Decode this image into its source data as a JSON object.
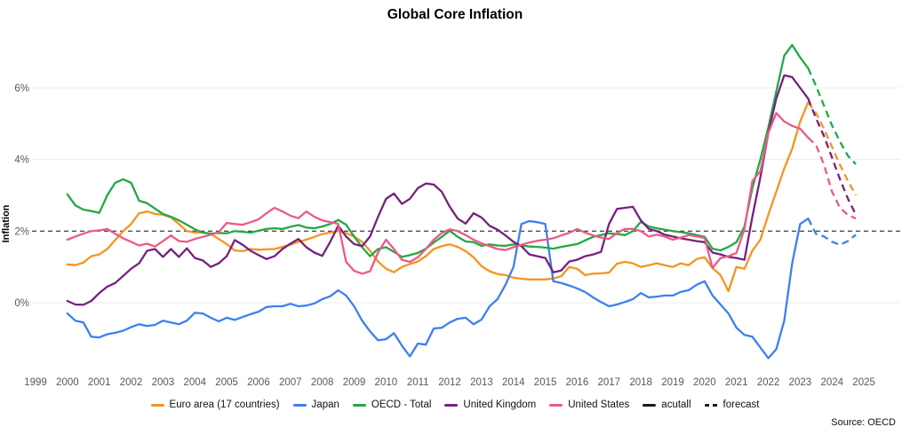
{
  "chart_data": {
    "type": "line",
    "title": "Global Core Inflation",
    "ylabel": "Inflation",
    "source": "Source: OECD",
    "grid": "horizontal-only",
    "legend_position": "bottom-center",
    "reference_line": 2,
    "ylim": [
      -2,
      7.5
    ],
    "y_ticks": [
      {
        "value": 0,
        "label": "0%"
      },
      {
        "value": 2,
        "label": "2%"
      },
      {
        "value": 4,
        "label": "4%"
      },
      {
        "value": 6,
        "label": "6%"
      }
    ],
    "x_ticks": [
      "1999",
      "2000",
      "2001",
      "2002",
      "2003",
      "2004",
      "2005",
      "2006",
      "2007",
      "2008",
      "2009",
      "2010",
      "2011",
      "2012",
      "2013",
      "2014",
      "2015",
      "2016",
      "2017",
      "2018",
      "2019",
      "2020",
      "2021",
      "2022",
      "2023",
      "2024",
      "2025"
    ],
    "style_legend": [
      {
        "label": "acutall",
        "dashed": false,
        "color": "#1a1a1a"
      },
      {
        "label": "forecast",
        "dashed": true,
        "color": "#1a1a1a"
      }
    ],
    "x_start": 2000,
    "x_step": 0.25,
    "forecast_x_start": 2023.25,
    "series": [
      {
        "name": "Euro area (17 countries)",
        "color": "#f5941f",
        "actual": [
          1.07,
          1.05,
          1.12,
          1.3,
          1.35,
          1.5,
          1.75,
          2.0,
          2.2,
          2.5,
          2.55,
          2.48,
          2.46,
          2.38,
          2.2,
          2.0,
          1.96,
          1.96,
          1.93,
          1.78,
          1.64,
          1.46,
          1.44,
          1.5,
          1.48,
          1.49,
          1.5,
          1.56,
          1.62,
          1.7,
          1.76,
          1.84,
          1.92,
          1.96,
          2.0,
          1.95,
          1.85,
          1.7,
          1.45,
          1.15,
          0.95,
          0.85,
          1.0,
          1.08,
          1.15,
          1.3,
          1.5,
          1.58,
          1.63,
          1.56,
          1.44,
          1.27,
          1.02,
          0.88,
          0.8,
          0.77,
          0.7,
          0.67,
          0.65,
          0.65,
          0.65,
          0.68,
          0.74,
          1.0,
          0.95,
          0.77,
          0.81,
          0.82,
          0.84,
          1.09,
          1.14,
          1.1,
          1.0,
          1.05,
          1.1,
          1.05,
          1.0,
          1.1,
          1.05,
          1.22,
          1.27,
          0.97,
          0.77,
          0.32,
          1.0,
          0.95,
          1.45,
          1.76,
          2.46,
          3.1,
          3.75,
          4.3,
          5.06,
          5.6
        ],
        "forecast": [
          5.6,
          5.3,
          4.85,
          4.35,
          3.85,
          3.4,
          3.0
        ]
      },
      {
        "name": "Japan",
        "color": "#3d7ff3",
        "actual": [
          -0.3,
          -0.5,
          -0.55,
          -0.95,
          -0.97,
          -0.88,
          -0.84,
          -0.78,
          -0.68,
          -0.6,
          -0.65,
          -0.62,
          -0.5,
          -0.55,
          -0.6,
          -0.5,
          -0.28,
          -0.3,
          -0.42,
          -0.52,
          -0.42,
          -0.48,
          -0.4,
          -0.32,
          -0.25,
          -0.12,
          -0.1,
          -0.1,
          -0.03,
          -0.1,
          -0.08,
          -0.02,
          0.1,
          0.18,
          0.35,
          0.2,
          -0.1,
          -0.5,
          -0.8,
          -1.05,
          -1.02,
          -0.85,
          -1.2,
          -1.5,
          -1.14,
          -1.17,
          -0.72,
          -0.7,
          -0.55,
          -0.45,
          -0.42,
          -0.6,
          -0.47,
          -0.1,
          0.1,
          0.5,
          1.0,
          2.2,
          2.28,
          2.25,
          2.2,
          0.6,
          0.55,
          0.48,
          0.4,
          0.3,
          0.15,
          0.02,
          -0.1,
          -0.05,
          0.02,
          0.1,
          0.27,
          0.15,
          0.17,
          0.2,
          0.2,
          0.3,
          0.35,
          0.5,
          0.6,
          0.2,
          -0.05,
          -0.3,
          -0.7,
          -0.9,
          -0.95,
          -1.25,
          -1.55,
          -1.3,
          -0.5,
          1.1,
          2.2,
          2.35
        ],
        "forecast": [
          2.35,
          1.92,
          1.85,
          1.7,
          1.62,
          1.72,
          1.9
        ]
      },
      {
        "name": "OECD - Total",
        "color": "#23a845",
        "actual": [
          3.03,
          2.72,
          2.6,
          2.56,
          2.51,
          3.0,
          3.35,
          3.45,
          3.35,
          2.85,
          2.78,
          2.63,
          2.48,
          2.4,
          2.3,
          2.18,
          2.05,
          1.96,
          1.93,
          1.95,
          1.94,
          2.0,
          1.98,
          1.96,
          2.01,
          2.06,
          2.08,
          2.06,
          2.12,
          2.17,
          2.1,
          2.08,
          2.13,
          2.2,
          2.31,
          2.18,
          1.85,
          1.55,
          1.3,
          1.5,
          1.55,
          1.42,
          1.28,
          1.33,
          1.39,
          1.51,
          1.68,
          1.84,
          2.01,
          1.84,
          1.71,
          1.69,
          1.59,
          1.63,
          1.6,
          1.59,
          1.63,
          1.6,
          1.57,
          1.56,
          1.54,
          1.51,
          1.56,
          1.6,
          1.64,
          1.74,
          1.84,
          1.89,
          1.94,
          1.92,
          1.89,
          2.0,
          2.26,
          2.13,
          2.08,
          2.04,
          2.0,
          1.97,
          1.94,
          1.89,
          1.84,
          1.51,
          1.46,
          1.56,
          1.69,
          2.13,
          3.2,
          4.0,
          4.9,
          5.9,
          6.9,
          7.2,
          6.85,
          6.55
        ],
        "forecast": [
          6.55,
          6.05,
          5.5,
          4.95,
          4.5,
          4.1,
          3.87
        ]
      },
      {
        "name": "United Kingdom",
        "color": "#75217f",
        "actual": [
          0.05,
          -0.05,
          -0.06,
          0.05,
          0.27,
          0.45,
          0.55,
          0.75,
          0.95,
          1.1,
          1.45,
          1.5,
          1.28,
          1.5,
          1.28,
          1.52,
          1.25,
          1.18,
          1.0,
          1.1,
          1.3,
          1.75,
          1.62,
          1.45,
          1.33,
          1.22,
          1.3,
          1.5,
          1.65,
          1.78,
          1.55,
          1.4,
          1.31,
          1.7,
          2.15,
          1.85,
          1.64,
          1.58,
          1.85,
          2.4,
          2.9,
          3.05,
          2.76,
          2.9,
          3.2,
          3.33,
          3.3,
          3.1,
          2.68,
          2.35,
          2.21,
          2.5,
          2.38,
          2.15,
          2.04,
          1.88,
          1.7,
          1.58,
          1.35,
          1.3,
          1.25,
          0.85,
          0.9,
          1.15,
          1.2,
          1.3,
          1.35,
          1.42,
          2.2,
          2.62,
          2.65,
          2.68,
          2.3,
          2.06,
          2.0,
          1.9,
          1.85,
          1.8,
          1.76,
          1.72,
          1.69,
          1.4,
          1.35,
          1.28,
          1.25,
          1.2,
          2.4,
          3.5,
          4.74,
          5.7,
          6.35,
          6.3,
          6.0,
          5.7
        ],
        "forecast": [
          5.7,
          5.15,
          4.65,
          4.05,
          3.45,
          2.9,
          2.46
        ]
      },
      {
        "name": "United States",
        "color": "#eb5a86",
        "actual": [
          1.76,
          1.85,
          1.93,
          2.0,
          2.02,
          2.06,
          1.93,
          1.8,
          1.7,
          1.6,
          1.65,
          1.57,
          1.72,
          1.88,
          1.72,
          1.7,
          1.78,
          1.84,
          1.9,
          1.97,
          2.23,
          2.2,
          2.18,
          2.25,
          2.33,
          2.5,
          2.65,
          2.55,
          2.43,
          2.36,
          2.55,
          2.4,
          2.3,
          2.25,
          2.2,
          1.14,
          0.89,
          0.81,
          0.88,
          1.4,
          1.76,
          1.5,
          1.2,
          1.14,
          1.27,
          1.5,
          1.76,
          1.95,
          2.05,
          2.0,
          1.89,
          1.76,
          1.66,
          1.58,
          1.5,
          1.47,
          1.55,
          1.62,
          1.68,
          1.73,
          1.76,
          1.8,
          1.88,
          1.95,
          2.06,
          1.96,
          1.88,
          1.82,
          1.78,
          1.95,
          2.06,
          2.06,
          2.0,
          1.85,
          1.9,
          1.85,
          1.76,
          1.82,
          1.89,
          1.85,
          1.81,
          0.97,
          1.25,
          1.3,
          1.39,
          2.06,
          3.4,
          3.67,
          4.74,
          5.3,
          5.06,
          4.94,
          4.86,
          4.61
        ],
        "forecast": [
          4.61,
          4.4,
          3.85,
          3.1,
          2.65,
          2.45,
          2.35
        ]
      }
    ]
  }
}
